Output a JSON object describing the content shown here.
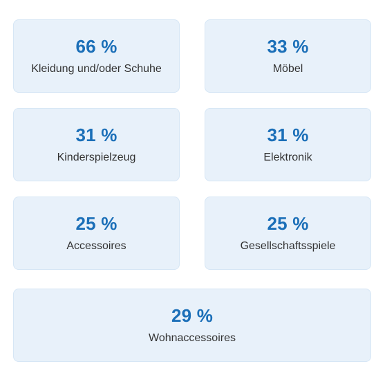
{
  "colors": {
    "card_background": "#e8f1fa",
    "card_border": "#d6e6f5",
    "value_text": "#1b6fb8",
    "label_text": "#333333"
  },
  "chart_data": {
    "type": "table",
    "unit": "%",
    "categories": [
      "Kleidung und/oder Schuhe",
      "Möbel",
      "Kinderspielzeug",
      "Elektronik",
      "Accessoires",
      "Gesellschaftsspiele",
      "Wohnaccessoires"
    ],
    "values": [
      66,
      33,
      31,
      31,
      25,
      25,
      29
    ],
    "cards": [
      {
        "value_label": "66 %",
        "label": "Kleidung und/oder Schuhe"
      },
      {
        "value_label": "33 %",
        "label": "Möbel"
      },
      {
        "value_label": "31 %",
        "label": "Kinderspielzeug"
      },
      {
        "value_label": "31 %",
        "label": "Elektronik"
      },
      {
        "value_label": "25 %",
        "label": "Accessoires"
      },
      {
        "value_label": "25 %",
        "label": "Gesellschaftsspiele"
      },
      {
        "value_label": "29 %",
        "label": "Wohnaccessoires"
      }
    ]
  }
}
